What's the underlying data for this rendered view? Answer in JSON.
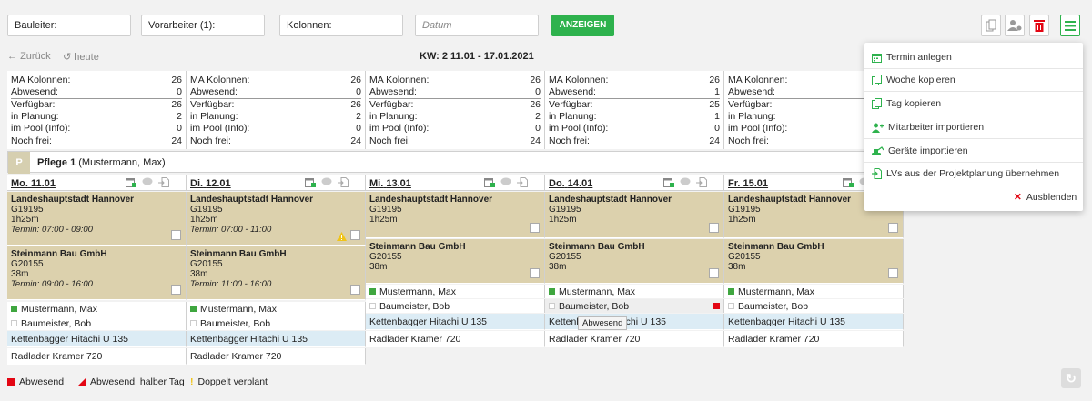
{
  "filters": {
    "bauleiter": "Bauleiter:",
    "vorarbeiter": "Vorarbeiter (1):",
    "kolonnen": "Kolonnen:",
    "datum_placeholder": "Datum",
    "show_label": "ANZEIGEN"
  },
  "nav": {
    "back": "Zurück",
    "today": "heute",
    "week": "KW: 2    11.01 - 17.01.2021"
  },
  "stats": [
    {
      "ma": "26",
      "abw": "0",
      "verf": "26",
      "plan": "2",
      "pool": "0",
      "frei": "24"
    },
    {
      "ma": "26",
      "abw": "0",
      "verf": "26",
      "plan": "2",
      "pool": "0",
      "frei": "24"
    },
    {
      "ma": "26",
      "abw": "0",
      "verf": "26",
      "plan": "2",
      "pool": "0",
      "frei": "24"
    },
    {
      "ma": "26",
      "abw": "1",
      "verf": "25",
      "plan": "1",
      "pool": "0",
      "frei": "24"
    },
    {
      "ma": "26",
      "abw": "0",
      "verf": "26",
      "plan": "2",
      "pool": "0",
      "frei": "24"
    }
  ],
  "stat_labels": {
    "ma": "MA Kolonnen:",
    "abw": "Abwesend:",
    "verf": "Verfügbar:",
    "plan": "in Planung:",
    "pool": "im Pool (Info):",
    "frei": "Noch frei:"
  },
  "group": {
    "badge": "P",
    "name": "Pflege 1",
    "lead": "(Mustermann, Max)"
  },
  "days": [
    {
      "wd": "Mo.",
      "date": "11.01"
    },
    {
      "wd": "Di.",
      "date": "12.01"
    },
    {
      "wd": "Mi.",
      "date": "13.01"
    },
    {
      "wd": "Do.",
      "date": "14.01"
    },
    {
      "wd": "Fr.",
      "date": "15.01"
    }
  ],
  "job1": {
    "name": "Landeshauptstadt Hannover",
    "code": "G19195",
    "dur_h": "1",
    "dur_m": "25",
    "termin_mo": "Termin: 07:00 - 09:00",
    "termin_di": "Termin: 07:00 - 11:00"
  },
  "job2": {
    "name": "Steinmann Bau GmbH",
    "code": "G20155",
    "dur_m": "38",
    "termin_mo": "Termin: 09:00 - 16:00",
    "termin_di": "Termin: 11:00 - 16:00"
  },
  "people": {
    "p1": "Mustermann, Max",
    "p2": "Baumeister, Bob"
  },
  "machines": {
    "m1": "Kettenbagger Hitachi U 135",
    "m2": "Radlader Kramer 720"
  },
  "tooltip": "Abwesend",
  "menu": {
    "termin": "Termin anlegen",
    "woche": "Woche kopieren",
    "tag": "Tag kopieren",
    "mitarbeiter": "Mitarbeiter importieren",
    "geraete": "Geräte importieren",
    "lvs": "LVs aus der Projektplanung übernehmen",
    "hide": "Ausblenden"
  },
  "legend": {
    "abw": "Abwesend",
    "half": "Abwesend, halber Tag",
    "double": "Doppelt verplant"
  },
  "colors": {
    "accent": "#2eb24d",
    "job": "#dcd1ad",
    "machine": "#dcecf5",
    "absent": "#e30613"
  }
}
